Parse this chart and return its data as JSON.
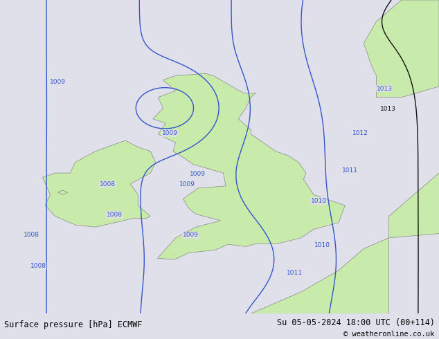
{
  "title_left": "Surface pressure [hPa] ECMWF",
  "title_right": "Su 05-05-2024 18:00 UTC (00+114)",
  "copyright": "© weatheronline.co.uk",
  "background_color": "#e0e0ea",
  "land_color": "#c8eaaa",
  "land_edge_color": "#888888",
  "sea_color": "#e0e0ea",
  "contour_color_blue": "#3355cc",
  "contour_color_black": "#111111",
  "label_color": "#3355cc",
  "bottom_bar_color": "#ffffff",
  "bottom_text_color": "#000000",
  "figsize": [
    6.34,
    4.9
  ],
  "dpi": 100
}
